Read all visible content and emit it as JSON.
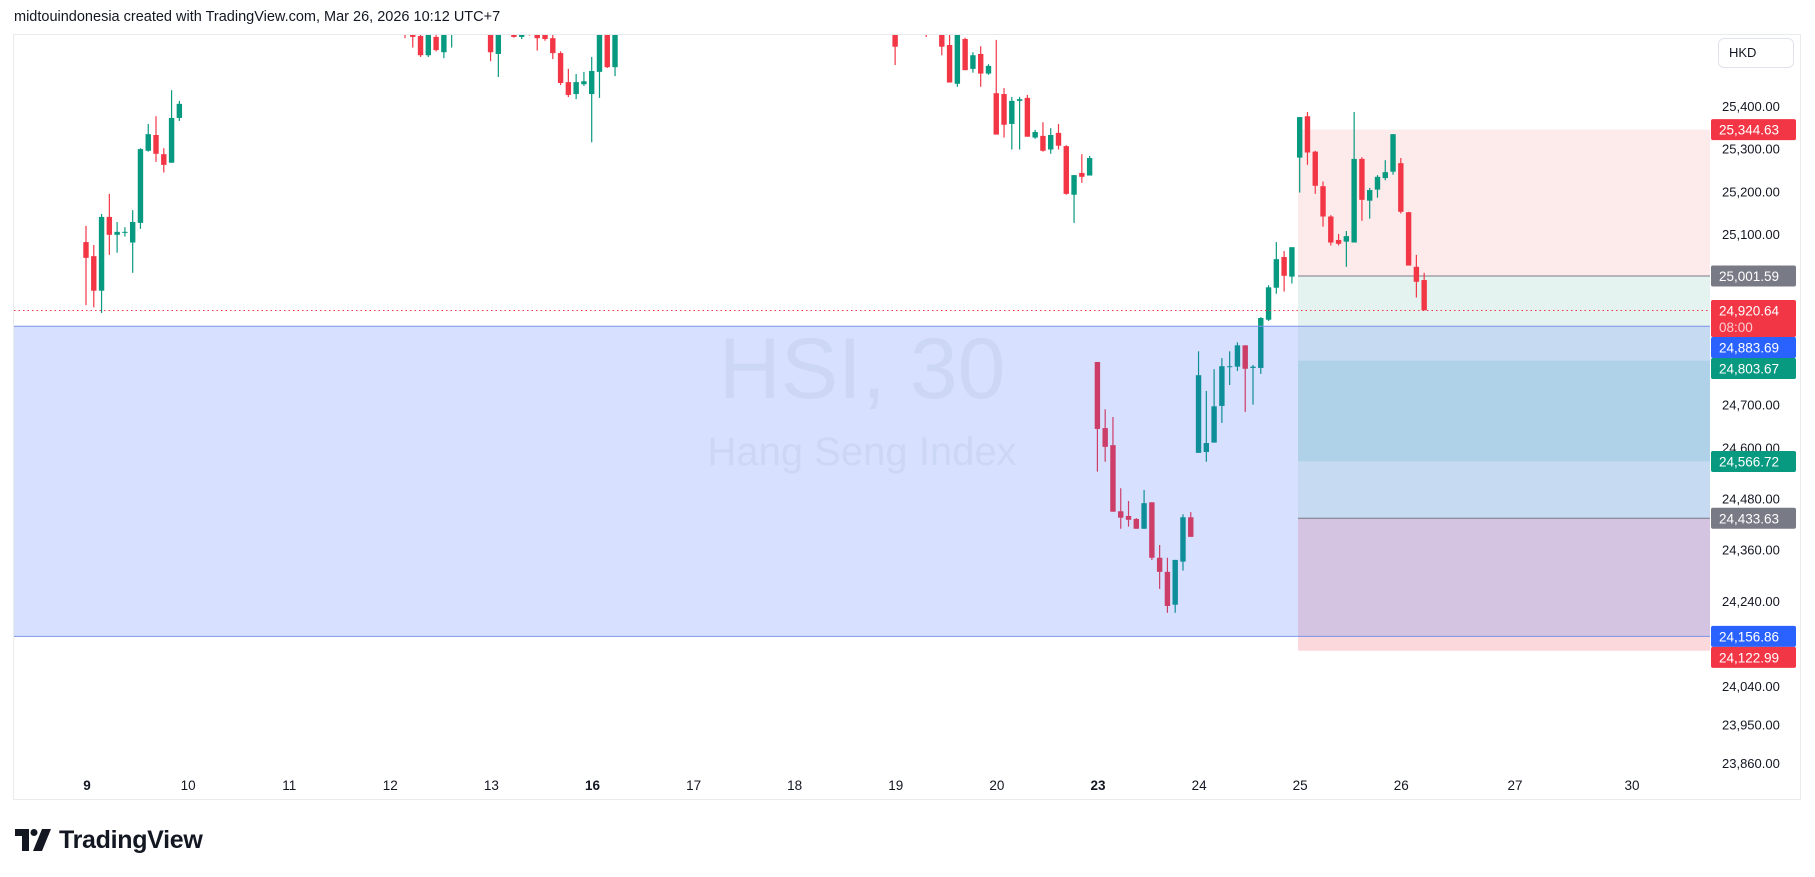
{
  "header": {
    "attribution": "midtouindonesia created with TradingView.com, Mar 26, 2026 10:12 UTC+7"
  },
  "currency": "HKD",
  "watermark": {
    "symbol": "HSI, 30",
    "name": "Hang Seng Index"
  },
  "logo": {
    "text": "TradingView"
  },
  "colors": {
    "up": "#089981",
    "down": "#f23645",
    "blue_zone": "rgba(41,98,255,0.19)",
    "blue_line": "#7b93e8",
    "last_price_line": "#f23645",
    "grey_line": "#787b86"
  },
  "chart_data": {
    "type": "candlestick",
    "interval": "30",
    "x_labels": [
      {
        "text": "9",
        "bold": true
      },
      {
        "text": "10"
      },
      {
        "text": "11"
      },
      {
        "text": "12"
      },
      {
        "text": "13"
      },
      {
        "text": "16",
        "bold": true
      },
      {
        "text": "17"
      },
      {
        "text": "18"
      },
      {
        "text": "19"
      },
      {
        "text": "20"
      },
      {
        "text": "23",
        "bold": true
      },
      {
        "text": "24"
      },
      {
        "text": "25"
      },
      {
        "text": "26"
      },
      {
        "text": "27"
      },
      {
        "text": "30"
      }
    ],
    "y_ticks": [
      {
        "value": 25400,
        "text": "25,400.00"
      },
      {
        "value": 25300,
        "text": "25,300.00"
      },
      {
        "value": 25200,
        "text": "25,200.00"
      },
      {
        "value": 25100,
        "text": "25,100.00"
      },
      {
        "value": 24700,
        "text": "24,700.00"
      },
      {
        "value": 24600,
        "text": "24,600.00"
      },
      {
        "value": 24480,
        "text": "24,480.00"
      },
      {
        "value": 24360,
        "text": "24,360.00"
      },
      {
        "value": 24240,
        "text": "24,240.00"
      },
      {
        "value": 24040,
        "text": "24,040.00"
      },
      {
        "value": 23950,
        "text": "23,950.00"
      },
      {
        "value": 23860,
        "text": "23,860.00"
      }
    ],
    "ylim": [
      23800,
      25566
    ],
    "last_price": {
      "value": 24920.64,
      "text": "24,920.64",
      "countdown": "08:00"
    },
    "price_badges": [
      {
        "value": 25344.63,
        "text": "25,344.63",
        "color": "#f23645"
      },
      {
        "value": 25001.59,
        "text": "25,001.59",
        "color": "#787b86"
      },
      {
        "value": 24883.69,
        "text": "24,883.69",
        "color": "#2962ff"
      },
      {
        "value": 24803.67,
        "text": "24,803.67",
        "color": "#089981"
      },
      {
        "value": 24566.72,
        "text": "24,566.72",
        "color": "#089981"
      },
      {
        "value": 24433.63,
        "text": "24,433.63",
        "color": "#787b86"
      },
      {
        "value": 24156.86,
        "text": "24,156.86",
        "color": "#2962ff"
      },
      {
        "value": 24122.99,
        "text": "24,122.99",
        "color": "#f23645"
      }
    ],
    "zones": {
      "rectangle": {
        "top": 24883.69,
        "bottom": 24156.86
      },
      "position_bands": [
        {
          "top": 25344.63,
          "bottom": 25001.59,
          "color": "#fdeaeb"
        },
        {
          "top": 25001.59,
          "bottom": 24883.69,
          "color": "#e4f3ef"
        },
        {
          "top": 24883.69,
          "bottom": 24803.67,
          "color": "#c6daf1"
        },
        {
          "top": 24803.67,
          "bottom": 24566.72,
          "color": "#b0d2e8"
        },
        {
          "top": 24566.72,
          "bottom": 24433.63,
          "color": "#c6daf1"
        },
        {
          "top": 24433.63,
          "bottom": 24156.86,
          "color": "#d5c3e2"
        },
        {
          "top": 24156.86,
          "bottom": 24122.99,
          "color": "#fbd8db"
        }
      ],
      "grey_lines": [
        25001.59,
        24433.63
      ]
    },
    "candle_format": [
      "open",
      "high",
      "low",
      "close"
    ],
    "candles": [
      [
        25081,
        25119,
        24933,
        25044
      ],
      [
        25048,
        25074,
        24928,
        24967
      ],
      [
        24967,
        25147,
        24915,
        25140
      ],
      [
        25140,
        25194,
        25051,
        25098
      ],
      [
        25098,
        25128,
        25056,
        25105
      ],
      [
        25103,
        25116,
        25094,
        25105
      ],
      [
        25080,
        25156,
        25009,
        25128
      ],
      [
        25126,
        25301,
        25112,
        25299
      ],
      [
        25295,
        25358,
        25293,
        25334
      ],
      [
        25332,
        25376,
        25269,
        25288
      ],
      [
        25287,
        25301,
        25244,
        25262
      ],
      [
        25267,
        25437,
        25267,
        25372
      ],
      [
        25372,
        25412,
        25365,
        25405
      ],
      null,
      null,
      null,
      null,
      null,
      null,
      null,
      null,
      null,
      null,
      null,
      null,
      null,
      null,
      null,
      null,
      null,
      null,
      null,
      null,
      null,
      null,
      null,
      null,
      null,
      null,
      null,
      null,
      [
        25600,
        25610,
        25559,
        25590
      ],
      [
        25600,
        25610,
        25537,
        25562
      ],
      [
        25564,
        25580,
        25515,
        25519
      ],
      [
        25519,
        25615,
        25515,
        25600
      ],
      [
        25562,
        25590,
        25528,
        25531
      ],
      [
        25526,
        25620,
        25512,
        25600
      ],
      [
        25575,
        25600,
        25537,
        25590
      ],
      null,
      null,
      null,
      null,
      [
        25620,
        25630,
        25505,
        25526
      ],
      [
        25522,
        25630,
        25468,
        25610
      ],
      null,
      [
        25590,
        25600,
        25560,
        25562
      ],
      [
        25562,
        25610,
        25557,
        25600
      ],
      [
        25585,
        25590,
        25565,
        25575
      ],
      [
        25600,
        25610,
        25530,
        25559
      ],
      [
        25600,
        25605,
        25553,
        25557
      ],
      [
        25559,
        25590,
        25510,
        25524
      ],
      [
        25524,
        25528,
        25449,
        25454
      ],
      [
        25456,
        25487,
        25421,
        25426
      ],
      [
        25428,
        25475,
        25416,
        25456
      ],
      [
        25451,
        25480,
        25447,
        25458
      ],
      [
        25428,
        25515,
        25315,
        25482
      ],
      [
        25480,
        25620,
        25419,
        25600
      ],
      [
        25600,
        25610,
        25489,
        25491
      ],
      [
        25491,
        25630,
        25470,
        25610
      ],
      null,
      null,
      null,
      null,
      null,
      null,
      null,
      null,
      null,
      null,
      null,
      null,
      null,
      null,
      null,
      null,
      null,
      null,
      null,
      null,
      null,
      null,
      null,
      null,
      null,
      null,
      null,
      null,
      null,
      null,
      null,
      null,
      null,
      null,
      null,
      [
        25600,
        25620,
        25496,
        25539
      ],
      null,
      null,
      null,
      [
        25580,
        25590,
        25562,
        25574
      ],
      null,
      [
        25610,
        25620,
        25519,
        25539
      ],
      [
        25543,
        25600,
        25455,
        25455
      ],
      [
        25452,
        25600,
        25445,
        25590
      ],
      [
        25557,
        25560,
        25484,
        25484
      ],
      [
        25487,
        25526,
        25478,
        25519
      ],
      [
        25522,
        25540,
        25445,
        25476
      ],
      [
        25476,
        25498,
        25473,
        25494
      ],
      [
        25430,
        25555,
        25333,
        25333
      ],
      [
        25428,
        25442,
        25326,
        25356
      ],
      [
        25358,
        25421,
        25298,
        25412
      ],
      [
        25412,
        25421,
        25298,
        25416
      ],
      [
        25419,
        25426,
        25328,
        25328
      ],
      [
        25326,
        25344,
        25323,
        25339
      ],
      [
        25330,
        25362,
        25293,
        25295
      ],
      [
        25298,
        25348,
        25288,
        25332
      ],
      [
        25337,
        25358,
        25298,
        25307
      ],
      [
        25306,
        25308,
        25192,
        25194
      ],
      [
        25192,
        25238,
        25126,
        25238
      ],
      [
        25243,
        25287,
        25220,
        25234
      ],
      [
        25237,
        25283,
        25237,
        25278
      ],
      [
        24800,
        24800,
        24543,
        24643
      ],
      [
        24645,
        24689,
        24566,
        24601
      ],
      [
        24605,
        24671,
        24449,
        24449
      ],
      [
        24450,
        24504,
        24409,
        24435
      ],
      [
        24439,
        24474,
        24414,
        24430
      ],
      [
        24432,
        24434,
        24409,
        24409
      ],
      [
        24409,
        24500,
        24409,
        24469
      ],
      [
        24471,
        24471,
        24336,
        24341
      ],
      [
        24341,
        24371,
        24268,
        24308
      ],
      [
        24308,
        24341,
        24212,
        24228
      ],
      [
        24231,
        24336,
        24212,
        24336
      ],
      [
        24332,
        24443,
        24311,
        24436
      ],
      [
        24436,
        24448,
        24390,
        24390
      ],
      [
        24587,
        24825,
        24587,
        24769
      ],
      [
        24589,
        24732,
        24566,
        24610
      ],
      [
        24611,
        24783,
        24611,
        24696
      ],
      [
        24697,
        24809,
        24657,
        24790
      ],
      [
        24789,
        24825,
        24746,
        24790
      ],
      [
        24789,
        24846,
        24779,
        24839
      ],
      [
        24839,
        24839,
        24683,
        24784
      ],
      [
        24786,
        24793,
        24700,
        24789
      ],
      [
        24786,
        24905,
        24772,
        24903
      ],
      [
        24899,
        24980,
        24896,
        24975
      ],
      [
        24974,
        25081,
        24960,
        25041
      ],
      [
        25046,
        25060,
        24965,
        25002
      ],
      [
        25000,
        25069,
        24984,
        25069
      ],
      [
        25279,
        25374,
        25197,
        25374
      ],
      [
        25376,
        25386,
        25262,
        25291
      ],
      [
        25293,
        25295,
        25194,
        25213
      ],
      [
        25212,
        25223,
        25117,
        25141
      ],
      [
        25141,
        25144,
        25073,
        25080
      ],
      [
        25086,
        25100,
        25073,
        25077
      ],
      [
        25082,
        25107,
        25023,
        25095
      ],
      [
        25080,
        25386,
        25080,
        25276
      ],
      [
        25276,
        25280,
        25131,
        25180
      ],
      [
        25178,
        25208,
        25136,
        25203
      ],
      [
        25204,
        25238,
        25185,
        25234
      ],
      [
        25231,
        25273,
        25226,
        25245
      ],
      [
        25246,
        25334,
        25239,
        25334
      ],
      [
        25266,
        25278,
        25148,
        25152
      ],
      [
        25151,
        25152,
        25026,
        25026
      ],
      [
        25023,
        25051,
        24951,
        24988
      ],
      [
        24992,
        25009,
        24926,
        24921
      ]
    ]
  }
}
